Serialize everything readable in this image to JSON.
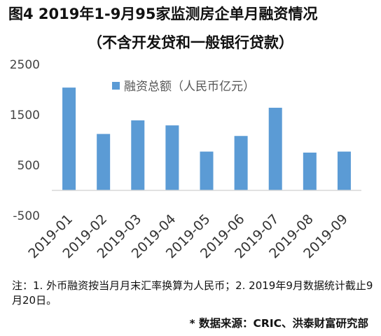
{
  "title": {
    "line1": "图4  2019年1-9月95家监测房企单月融资情况",
    "line2": "（不含开发贷和一般银行贷款）"
  },
  "chart_data": {
    "type": "bar",
    "categories": [
      "2019-01",
      "2019-02",
      "2019-03",
      "2019-04",
      "2019-05",
      "2019-06",
      "2019-07",
      "2019-08",
      "2019-09"
    ],
    "series": [
      {
        "name": "融资总额（人民币亿元）",
        "values": [
          2040,
          1120,
          1390,
          1290,
          770,
          1080,
          1640,
          750,
          770
        ]
      }
    ],
    "ylim": [
      -500,
      2500
    ],
    "yticks": [
      2500,
      1500,
      500,
      -500
    ],
    "grid": false,
    "legend_position": "top-center",
    "bar_color": "#5B9BD5"
  },
  "note": "注：1. 外币融资按当月月末汇率换算为人民币；2. 2019年9月数据统计截止9月20日。",
  "source": "* 数据来源：CRIC、洪泰财富研究部"
}
